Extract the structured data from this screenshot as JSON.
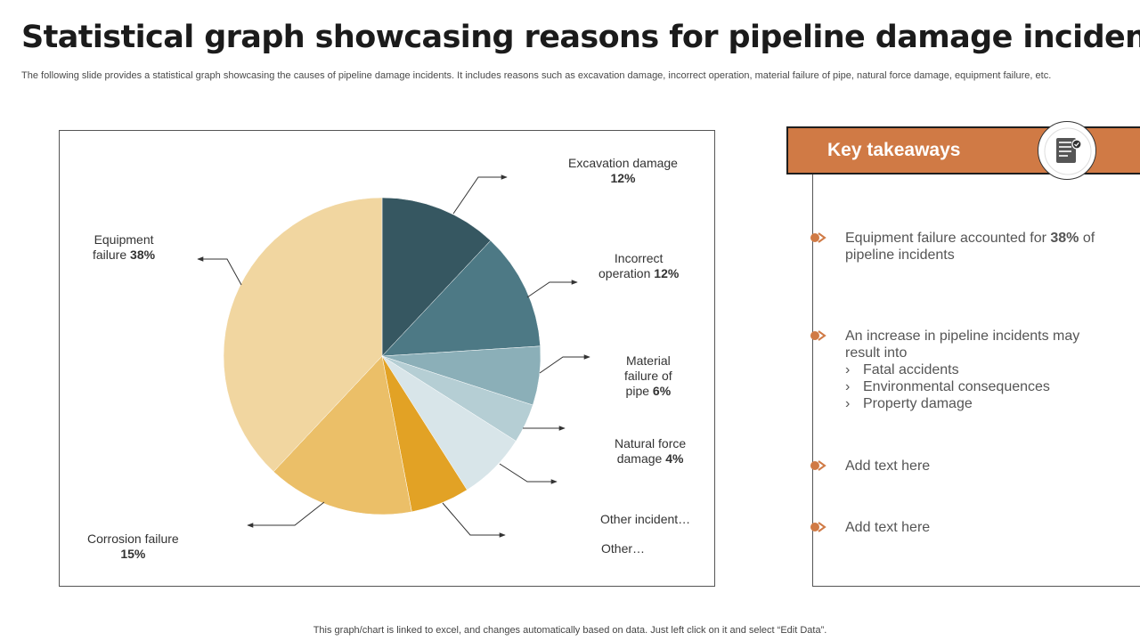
{
  "page": {
    "title": "Statistical graph showcasing reasons for pipeline damage incidents",
    "subtitle": "The following slide provides a statistical graph showcasing the causes of pipeline damage incidents. It includes reasons such as excavation damage, incorrect operation, material failure of pipe, natural force damage, equipment failure, etc.",
    "footer": "This graph/chart is linked to excel,  and changes automatically based on data. Just left click on it and select “Edit Data”."
  },
  "chart_data": {
    "type": "pie",
    "start_angle_deg": 0,
    "direction": "clockwise",
    "slices": [
      {
        "name": "Excavation damage",
        "value": 12,
        "value_label": "12%",
        "color": "#365761"
      },
      {
        "name": "Incorrect operation",
        "value": 12,
        "value_label": "12%",
        "color": "#4d7985"
      },
      {
        "name": "Material failure of pipe",
        "value": 6,
        "value_label": "6%",
        "color": "#8bafb8"
      },
      {
        "name": "Natural force damage",
        "value": 4,
        "value_label": "4%",
        "color": "#b5ced4"
      },
      {
        "name": "Other incident",
        "value": 7,
        "value_label": "",
        "color": "#d8e5e9"
      },
      {
        "name": "Other",
        "value": 6,
        "value_label": "",
        "color": "#e2a225"
      },
      {
        "name": "Corrosion failure",
        "value": 15,
        "value_label": "15%",
        "color": "#ebbf68"
      },
      {
        "name": "Equipment failure",
        "value": 38,
        "value_label": "38%",
        "color": "#f1d6a0"
      }
    ],
    "labels": {
      "excavation": {
        "text": "Excavation damage",
        "pct": "12%"
      },
      "incorrect": {
        "line1": "Incorrect",
        "line2": "operation",
        "pct": "12%"
      },
      "material": {
        "line1": "Material",
        "line2": "failure of",
        "line3": "pipe",
        "pct": "6%"
      },
      "natural": {
        "line1": "Natural force",
        "line2": "damage",
        "pct": "4%"
      },
      "other_incident": {
        "text": "Other incident…"
      },
      "other": {
        "text": "Other…"
      },
      "corrosion": {
        "text": "Corrosion failure",
        "pct": "15%"
      },
      "equipment": {
        "line1": "Equipment",
        "line2": "failure",
        "pct": "38%"
      }
    }
  },
  "takeaways": {
    "title": "Key takeaways",
    "icon": "document-checklist-icon",
    "accent": "#d07a45",
    "items": [
      {
        "pre": "Equipment failure accounted for ",
        "bold": "38%",
        "post": " of pipeline incidents"
      },
      {
        "text": "An increase in pipeline incidents may result into",
        "subs": [
          "Fatal accidents",
          "Environmental consequences",
          "Property damage"
        ],
        "chevron": "›"
      },
      {
        "text": "Add text here"
      },
      {
        "text": "Add text here"
      }
    ]
  }
}
